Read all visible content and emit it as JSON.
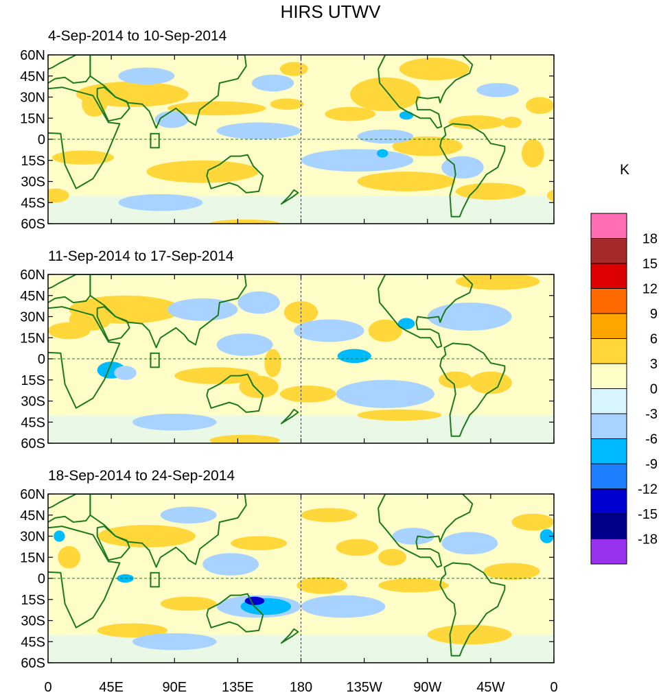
{
  "chart_data": {
    "type": "heatmap",
    "title": "HIRS UTWV",
    "colorbar": {
      "label": "K",
      "levels": [
        18,
        15,
        12,
        9,
        6,
        3,
        0,
        -3,
        -6,
        -9,
        -12,
        -15,
        -18
      ],
      "colors": [
        "#ff6eb4",
        "#a52a2a",
        "#dd0000",
        "#ff6a00",
        "#ffa500",
        "#ffd73a",
        "#fffdc8",
        "#d8f4ff",
        "#a8d2ff",
        "#00baff",
        "#1e7fff",
        "#0000d0",
        "#00008a",
        "#9932ee"
      ]
    },
    "x_ticks": [
      "0",
      "45E",
      "90E",
      "135E",
      "180",
      "135W",
      "90W",
      "45W",
      "0"
    ],
    "y_ticks": [
      "60N",
      "45N",
      "30N",
      "15N",
      "0",
      "15S",
      "30S",
      "45S",
      "60S"
    ],
    "panels": [
      {
        "title": "4-Sep-2014 to 10-Sep-2014",
        "blobs": [
          {
            "lon": 60,
            "lat": 32,
            "rx": 40,
            "ry": 9,
            "v": 4
          },
          {
            "lon": 33,
            "lat": 25,
            "rx": 9,
            "ry": 9,
            "v": 4
          },
          {
            "lon": 120,
            "lat": 22,
            "rx": 35,
            "ry": 5,
            "v": 4
          },
          {
            "lon": 170,
            "lat": 25,
            "rx": 12,
            "ry": 4,
            "v": 4
          },
          {
            "lon": 240,
            "lat": 32,
            "rx": 25,
            "ry": 12,
            "v": 5
          },
          {
            "lon": 215,
            "lat": 18,
            "rx": 18,
            "ry": 5,
            "v": 4
          },
          {
            "lon": 305,
            "lat": 12,
            "rx": 20,
            "ry": 5,
            "v": 4
          },
          {
            "lon": 330,
            "lat": 12,
            "rx": 7,
            "ry": 4,
            "v": 6
          },
          {
            "lon": 350,
            "lat": 24,
            "rx": 10,
            "ry": 6,
            "v": 4
          },
          {
            "lon": 270,
            "lat": -5,
            "rx": 25,
            "ry": 7,
            "v": 4
          },
          {
            "lon": 110,
            "lat": -23,
            "rx": 40,
            "ry": 8,
            "v": 4
          },
          {
            "lon": 25,
            "lat": -13,
            "rx": 22,
            "ry": 5,
            "v": 4
          },
          {
            "lon": 5,
            "lat": -40,
            "rx": 10,
            "ry": 5,
            "v": 4
          },
          {
            "lon": 140,
            "lat": -60,
            "rx": 25,
            "ry": 3,
            "v": 4
          },
          {
            "lon": 255,
            "lat": -30,
            "rx": 35,
            "ry": 7,
            "v": 5
          },
          {
            "lon": 315,
            "lat": -37,
            "rx": 25,
            "ry": 6,
            "v": 4
          },
          {
            "lon": 345,
            "lat": -10,
            "rx": 8,
            "ry": 10,
            "v": 4
          },
          {
            "lon": 175,
            "lat": 50,
            "rx": 10,
            "ry": 5,
            "v": 4
          },
          {
            "lon": 275,
            "lat": 50,
            "rx": 25,
            "ry": 8,
            "v": 4
          },
          {
            "lon": 88,
            "lat": 14,
            "rx": 12,
            "ry": 6,
            "v": -4
          },
          {
            "lon": 70,
            "lat": 45,
            "rx": 20,
            "ry": 6,
            "v": -3
          },
          {
            "lon": 150,
            "lat": 6,
            "rx": 30,
            "ry": 6,
            "v": -3
          },
          {
            "lon": 220,
            "lat": -15,
            "rx": 40,
            "ry": 8,
            "v": -3
          },
          {
            "lon": 240,
            "lat": 2,
            "rx": 20,
            "ry": 5,
            "v": -3
          },
          {
            "lon": 295,
            "lat": -20,
            "rx": 15,
            "ry": 8,
            "v": -3
          },
          {
            "lon": 255,
            "lat": 17,
            "rx": 5,
            "ry": 3,
            "v": -7
          },
          {
            "lon": 238,
            "lat": -10,
            "rx": 4,
            "ry": 3,
            "v": -7
          },
          {
            "lon": 80,
            "lat": -45,
            "rx": 30,
            "ry": 6,
            "v": -3
          },
          {
            "lon": 160,
            "lat": 40,
            "rx": 15,
            "ry": 6,
            "v": -3
          },
          {
            "lon": 320,
            "lat": 35,
            "rx": 15,
            "ry": 5,
            "v": -3
          }
        ]
      },
      {
        "title": "11-Sep-2014 to 17-Sep-2014",
        "blobs": [
          {
            "lon": 55,
            "lat": 35,
            "rx": 40,
            "ry": 10,
            "v": 4
          },
          {
            "lon": 30,
            "lat": 28,
            "rx": 15,
            "ry": 8,
            "v": 4
          },
          {
            "lon": 120,
            "lat": -12,
            "rx": 30,
            "ry": 6,
            "v": 5
          },
          {
            "lon": 160,
            "lat": -3,
            "rx": 6,
            "ry": 10,
            "v": 4
          },
          {
            "lon": 150,
            "lat": -20,
            "rx": 14,
            "ry": 8,
            "v": 4
          },
          {
            "lon": 180,
            "lat": 33,
            "rx": 12,
            "ry": 8,
            "v": 4
          },
          {
            "lon": 240,
            "lat": 20,
            "rx": 12,
            "ry": 8,
            "v": 5
          },
          {
            "lon": 315,
            "lat": -17,
            "rx": 15,
            "ry": 8,
            "v": 5
          },
          {
            "lon": 290,
            "lat": -15,
            "rx": 12,
            "ry": 6,
            "v": 4
          },
          {
            "lon": 185,
            "lat": -25,
            "rx": 20,
            "ry": 6,
            "v": 4
          },
          {
            "lon": 320,
            "lat": 55,
            "rx": 30,
            "ry": 6,
            "v": 4
          },
          {
            "lon": 140,
            "lat": -58,
            "rx": 25,
            "ry": 4,
            "v": 4
          },
          {
            "lon": 15,
            "lat": 20,
            "rx": 15,
            "ry": 6,
            "v": 4
          },
          {
            "lon": 250,
            "lat": -40,
            "rx": 30,
            "ry": 4,
            "v": 4
          },
          {
            "lon": 45,
            "lat": -8,
            "rx": 10,
            "ry": 6,
            "v": -7
          },
          {
            "lon": 55,
            "lat": -10,
            "rx": 8,
            "ry": 5,
            "v": -4
          },
          {
            "lon": 218,
            "lat": 2,
            "rx": 12,
            "ry": 5,
            "v": -7
          },
          {
            "lon": 200,
            "lat": 20,
            "rx": 25,
            "ry": 8,
            "v": -3
          },
          {
            "lon": 110,
            "lat": 35,
            "rx": 25,
            "ry": 8,
            "v": -3
          },
          {
            "lon": 300,
            "lat": 30,
            "rx": 30,
            "ry": 10,
            "v": -3
          },
          {
            "lon": 140,
            "lat": 10,
            "rx": 20,
            "ry": 8,
            "v": -3
          },
          {
            "lon": 240,
            "lat": -25,
            "rx": 35,
            "ry": 10,
            "v": -3
          },
          {
            "lon": 150,
            "lat": 40,
            "rx": 15,
            "ry": 8,
            "v": -3
          },
          {
            "lon": 90,
            "lat": -45,
            "rx": 30,
            "ry": 6,
            "v": -3
          },
          {
            "lon": 255,
            "lat": 25,
            "rx": 6,
            "ry": 4,
            "v": -7
          }
        ]
      },
      {
        "title": "18-Sep-2014 to 24-Sep-2014",
        "blobs": [
          {
            "lon": 70,
            "lat": 30,
            "rx": 35,
            "ry": 8,
            "v": 4
          },
          {
            "lon": 75,
            "lat": 28,
            "rx": 10,
            "ry": 4,
            "v": 6
          },
          {
            "lon": 150,
            "lat": 25,
            "rx": 20,
            "ry": 5,
            "v": 4
          },
          {
            "lon": 220,
            "lat": 22,
            "rx": 15,
            "ry": 6,
            "v": 4
          },
          {
            "lon": 245,
            "lat": 15,
            "rx": 10,
            "ry": 6,
            "v": 5
          },
          {
            "lon": 195,
            "lat": -5,
            "rx": 18,
            "ry": 6,
            "v": 5
          },
          {
            "lon": 260,
            "lat": -5,
            "rx": 25,
            "ry": 5,
            "v": 4
          },
          {
            "lon": 100,
            "lat": -18,
            "rx": 20,
            "ry": 5,
            "v": 4
          },
          {
            "lon": 60,
            "lat": -37,
            "rx": 25,
            "ry": 5,
            "v": 4
          },
          {
            "lon": 300,
            "lat": -40,
            "rx": 30,
            "ry": 7,
            "v": 4
          },
          {
            "lon": 15,
            "lat": 15,
            "rx": 8,
            "ry": 8,
            "v": 4
          },
          {
            "lon": 330,
            "lat": 5,
            "rx": 20,
            "ry": 6,
            "v": 4
          },
          {
            "lon": 345,
            "lat": 40,
            "rx": 15,
            "ry": 6,
            "v": 4
          },
          {
            "lon": 200,
            "lat": 45,
            "rx": 20,
            "ry": 5,
            "v": 4
          },
          {
            "lon": 150,
            "lat": -20,
            "rx": 30,
            "ry": 8,
            "v": -4
          },
          {
            "lon": 155,
            "lat": -20,
            "rx": 18,
            "ry": 6,
            "v": -8
          },
          {
            "lon": 147,
            "lat": -16,
            "rx": 7,
            "ry": 3,
            "v": -13
          },
          {
            "lon": 8,
            "lat": 30,
            "rx": 4,
            "ry": 4,
            "v": -7
          },
          {
            "lon": 355,
            "lat": 30,
            "rx": 5,
            "ry": 5,
            "v": -7
          },
          {
            "lon": 55,
            "lat": 0,
            "rx": 6,
            "ry": 3,
            "v": -7
          },
          {
            "lon": 130,
            "lat": 10,
            "rx": 20,
            "ry": 8,
            "v": -3
          },
          {
            "lon": 100,
            "lat": 45,
            "rx": 20,
            "ry": 6,
            "v": -3
          },
          {
            "lon": 260,
            "lat": 30,
            "rx": 15,
            "ry": 6,
            "v": -3
          },
          {
            "lon": 210,
            "lat": -20,
            "rx": 30,
            "ry": 8,
            "v": -3
          },
          {
            "lon": 90,
            "lat": -45,
            "rx": 30,
            "ry": 6,
            "v": -3
          },
          {
            "lon": 300,
            "lat": 25,
            "rx": 20,
            "ry": 8,
            "v": -3
          }
        ]
      }
    ]
  }
}
